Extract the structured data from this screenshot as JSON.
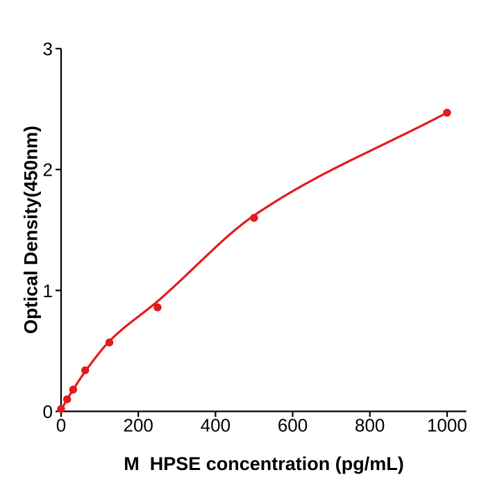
{
  "figure": {
    "background": "#ffffff",
    "axis_color": "#000000",
    "accent_red": "#e41a1c"
  },
  "chart_data": {
    "type": "scatter",
    "title": "",
    "xlabel": "M  HPSE concentration (pg/mL)",
    "ylabel": "Optical Density(450nm)",
    "x": [
      0,
      15.6,
      31.25,
      62.5,
      125,
      250,
      500,
      1000
    ],
    "y": [
      0.02,
      0.1,
      0.18,
      0.34,
      0.57,
      0.86,
      1.6,
      2.47
    ],
    "fit_curve_y": [
      0.01,
      0.1,
      0.18,
      0.33,
      0.58,
      0.91,
      1.62,
      2.47
    ],
    "x_ticks": [
      0,
      200,
      400,
      600,
      800,
      1000
    ],
    "y_ticks": [
      0,
      1,
      2,
      3
    ],
    "xlim": [
      0,
      1050
    ],
    "ylim": [
      0,
      3
    ],
    "grid": false,
    "legend": "none",
    "marker_color": "#e41a1c",
    "line_color": "#e41a1c"
  }
}
